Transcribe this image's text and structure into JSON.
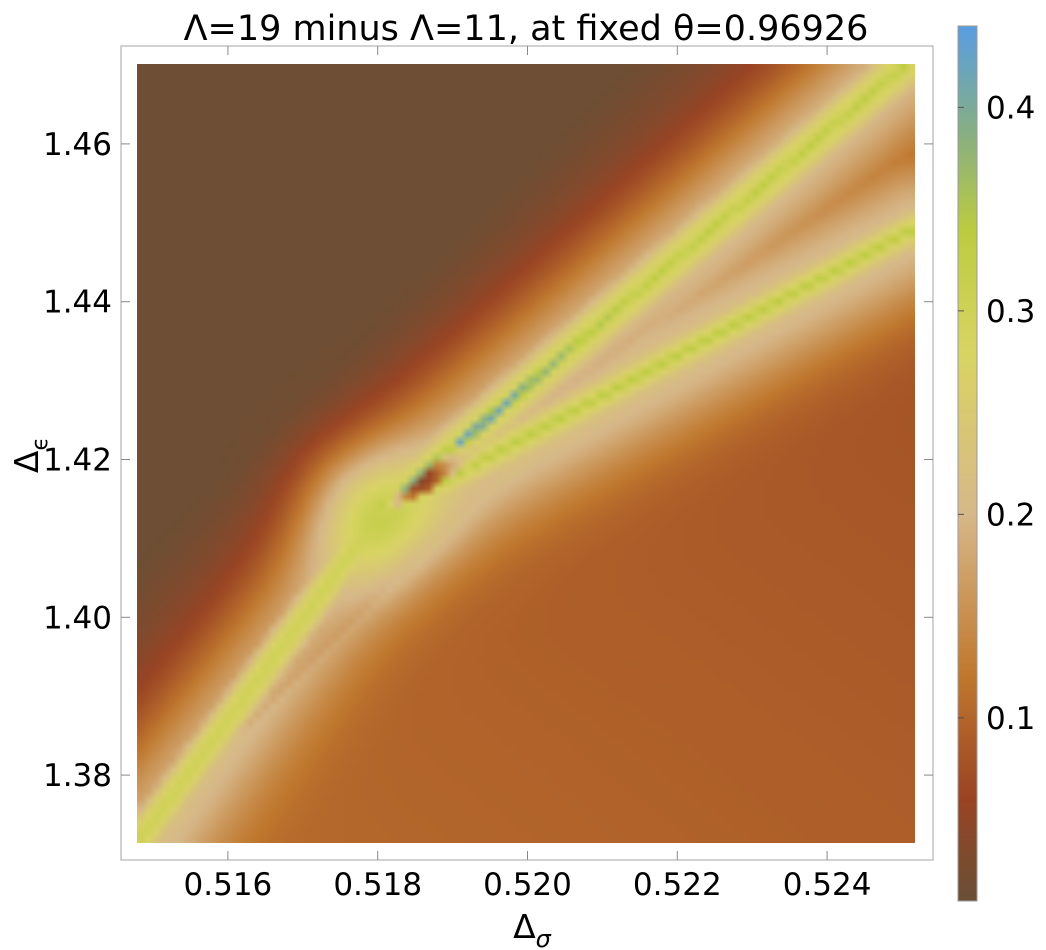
{
  "chart_data": {
    "type": "heatmap",
    "title": "Λ=19 minus Λ=11, at fixed θ=0.96926",
    "xlabel": "Δ",
    "xlabel_sub": "σ",
    "ylabel": "Δ",
    "ylabel_sub": "ϵ",
    "xlim": [
      0.515,
      0.525
    ],
    "ylim": [
      1.37,
      1.47
    ],
    "xticks": [
      0.516,
      0.518,
      0.52,
      0.522,
      0.524
    ],
    "xtick_labels": [
      "0.516",
      "0.518",
      "0.520",
      "0.522",
      "0.524"
    ],
    "yticks": [
      1.38,
      1.4,
      1.42,
      1.44,
      1.46
    ],
    "ytick_labels": [
      "1.38",
      "1.40",
      "1.42",
      "1.44",
      "1.46"
    ],
    "colorbar": {
      "range": [
        0.01,
        0.44
      ],
      "ticks": [
        0.1,
        0.2,
        0.3,
        0.4
      ],
      "tick_labels": [
        "0.1",
        "0.2",
        "0.3",
        "0.4"
      ],
      "stops": [
        {
          "value": 0.01,
          "color": "#6b4f35"
        },
        {
          "value": 0.06,
          "color": "#9a4424"
        },
        {
          "value": 0.12,
          "color": "#c0782e"
        },
        {
          "value": 0.2,
          "color": "#d7b88a"
        },
        {
          "value": 0.28,
          "color": "#d9d464"
        },
        {
          "value": 0.34,
          "color": "#bccc40"
        },
        {
          "value": 0.39,
          "color": "#86ae86"
        },
        {
          "value": 0.44,
          "color": "#5a9ee0"
        }
      ]
    },
    "grid": false,
    "features": {
      "upper_ridge": {
        "start": [
          0.5181,
          1.4125
        ],
        "end": [
          0.525,
          1.471
        ],
        "peak_value": 0.42
      },
      "lower_ridge": {
        "start": [
          0.5181,
          1.412
        ],
        "end": [
          0.525,
          1.449
        ],
        "peak_value": 0.34
      },
      "diagonal_band": {
        "start": [
          0.515,
          1.37
        ],
        "end": [
          0.5181,
          1.412
        ],
        "value": 0.3
      },
      "dark_pocket": {
        "center": [
          0.5186,
          1.4175
        ],
        "min_value": 0.02
      },
      "dark_corner": {
        "center": [
          0.515,
          1.47
        ],
        "value": 0.01
      }
    }
  }
}
